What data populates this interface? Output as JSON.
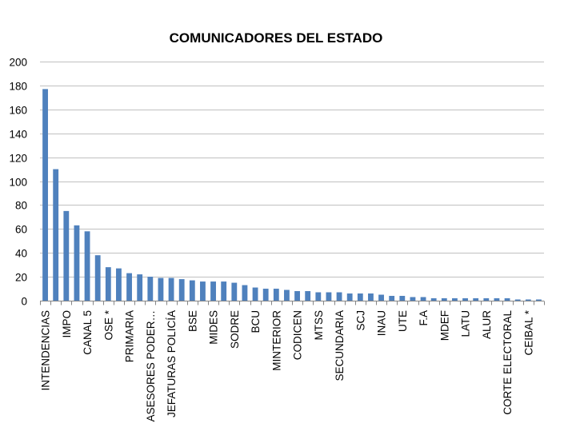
{
  "chart_data": {
    "type": "bar",
    "title": "COMUNICADORES DEL ESTADO",
    "xlabel": "",
    "ylabel": "",
    "ylim": [
      0,
      200
    ],
    "yticks": [
      0,
      20,
      40,
      60,
      80,
      100,
      120,
      140,
      160,
      180,
      200
    ],
    "grid": true,
    "legend": "none",
    "bar_color": "#4f81bd",
    "categories": [
      "INTENDENCIAS",
      "",
      "IMPO",
      "",
      "CANAL 5",
      "",
      "OSE *",
      "",
      "PRIMARIA",
      "",
      "ASESORES PODER…",
      "",
      "JEFATURAS POLICÍA",
      "",
      "BSE",
      "",
      "MIDES",
      "",
      "SODRE",
      "",
      "BCU",
      "",
      "MINTERIOR",
      "",
      "CODICEN",
      "",
      "MTSS",
      "",
      "SECUNDARIA",
      "",
      "SCJ",
      "",
      "INAU",
      "",
      "UTE",
      "",
      "F.A",
      "",
      "MDEF",
      "",
      "LATU",
      "",
      "ALUR",
      "",
      "CORTE ELECTORAL",
      "",
      "CEIBAL *",
      ""
    ],
    "values": [
      177,
      110,
      75,
      63,
      58,
      38,
      28,
      27,
      23,
      22,
      20,
      19,
      19,
      18,
      17,
      16,
      16,
      16,
      15,
      13,
      11,
      10,
      10,
      9,
      8,
      8,
      7,
      7,
      7,
      6,
      6,
      6,
      5,
      4,
      4,
      3,
      3,
      2,
      2,
      2,
      2,
      2,
      2,
      2,
      2,
      1,
      1,
      1
    ]
  }
}
